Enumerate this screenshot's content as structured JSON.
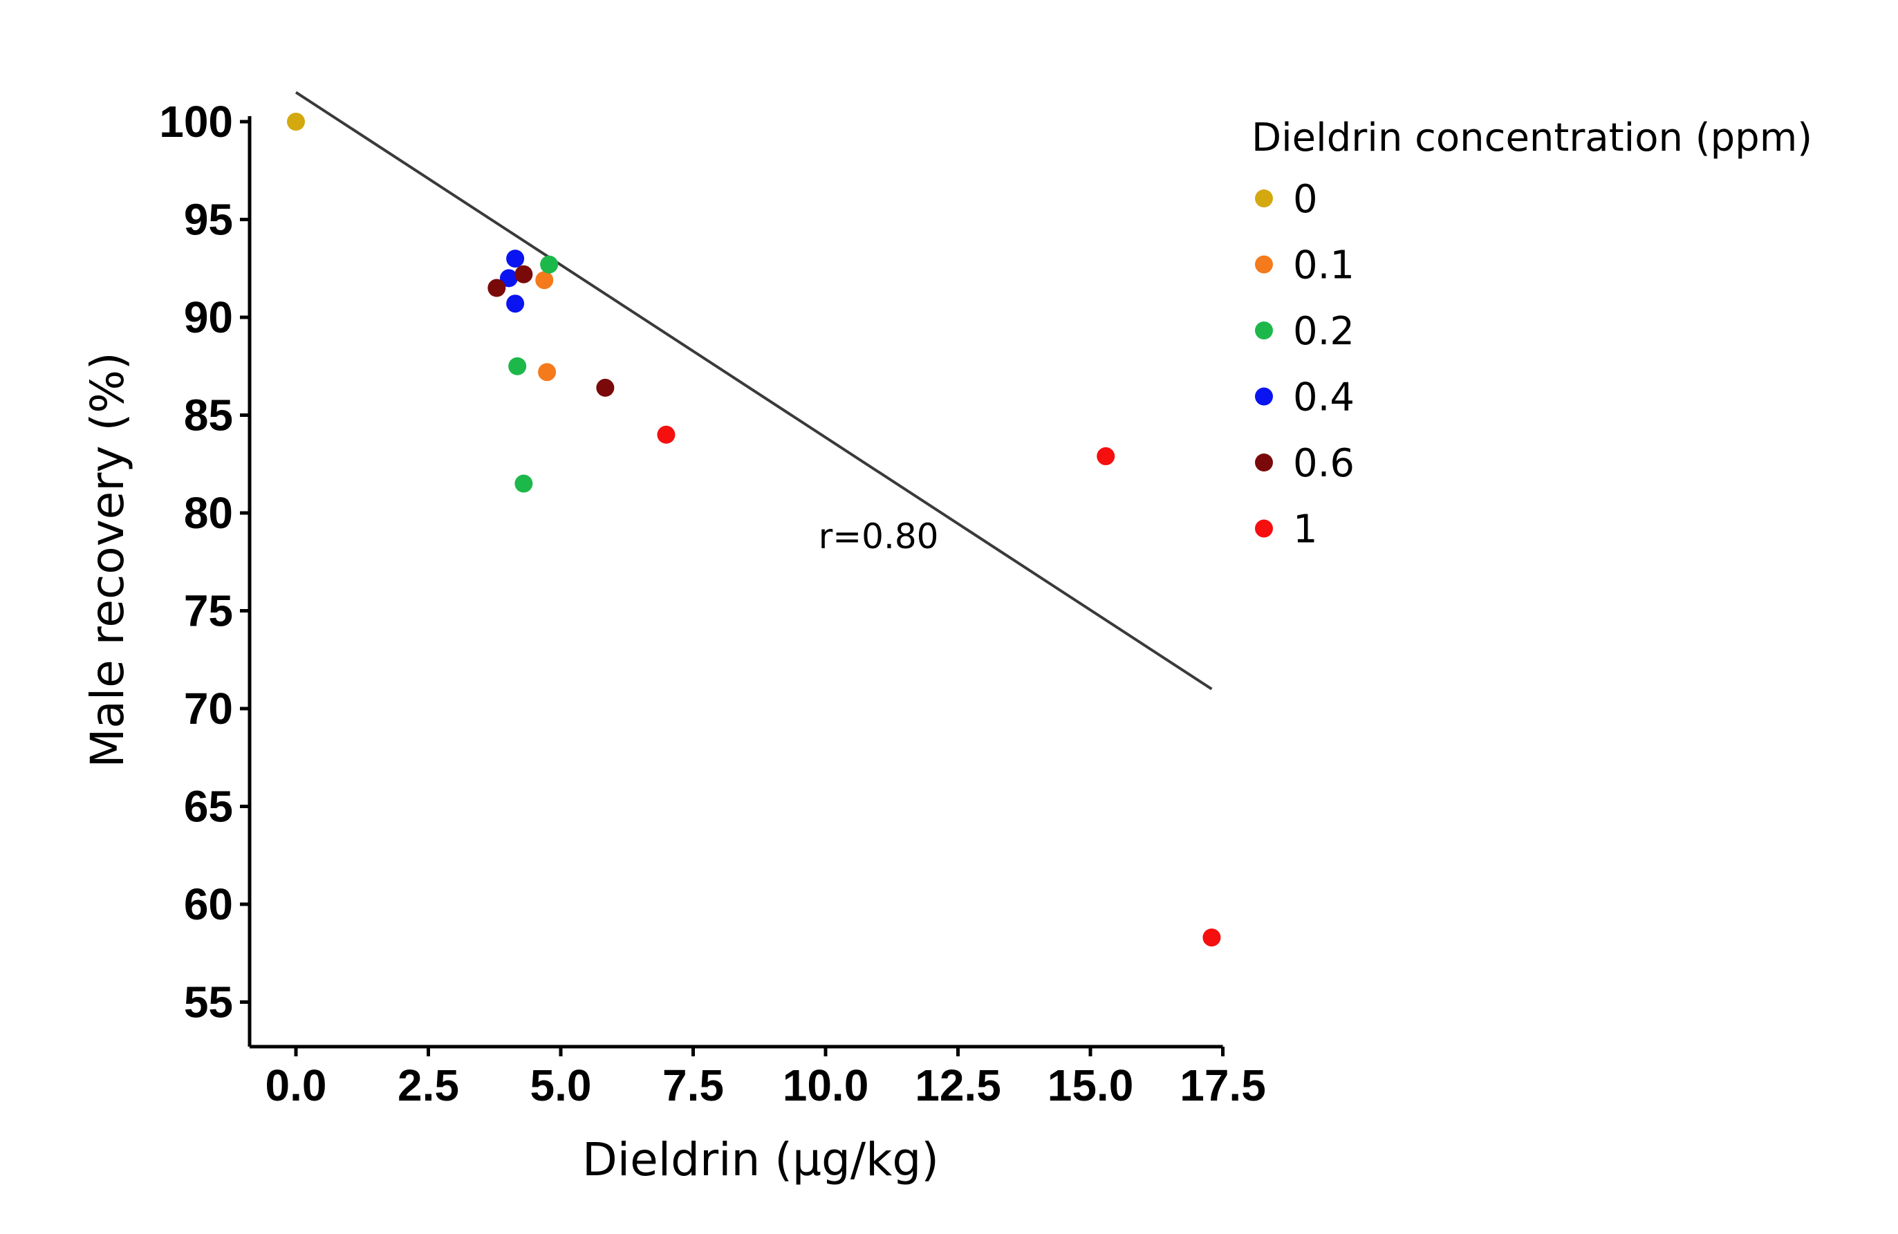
{
  "chart_data": {
    "type": "scatter",
    "title": "",
    "xlabel": "Dieldrin (µg/kg)",
    "ylabel": "Male recovery (%)",
    "xlim": [
      -0.9,
      17.5
    ],
    "ylim": [
      52.8,
      100
    ],
    "xticks": [
      "0.0",
      "2.5",
      "5.0",
      "7.5",
      "10.0",
      "12.5",
      "15.0",
      "17.5"
    ],
    "yticks": [
      "55",
      "60",
      "65",
      "70",
      "75",
      "80",
      "85",
      "90",
      "95",
      "100"
    ],
    "grid": false,
    "legend": {
      "title": "Dieldrin concentration (ppm)",
      "placement": "right"
    },
    "series": [
      {
        "name": "0",
        "color": "#d4a80f",
        "points": [
          [
            0,
            100
          ]
        ]
      },
      {
        "name": "0.1",
        "color": "#f57a1c",
        "points": [
          [
            4.69,
            91.9
          ],
          [
            4.74,
            87.2
          ]
        ]
      },
      {
        "name": "0.2",
        "color": "#1db84a",
        "points": [
          [
            4.78,
            92.7
          ],
          [
            4.18,
            87.5
          ],
          [
            4.3,
            81.5
          ]
        ]
      },
      {
        "name": "0.4",
        "color": "#0a14f0",
        "points": [
          [
            4.14,
            93.0
          ],
          [
            4.02,
            92.0
          ],
          [
            4.14,
            90.7
          ]
        ]
      },
      {
        "name": "0.6",
        "color": "#7a0a0a",
        "points": [
          [
            3.79,
            91.5
          ],
          [
            4.3,
            92.2
          ],
          [
            5.84,
            86.4
          ]
        ]
      },
      {
        "name": "1",
        "color": "#f50f0f",
        "points": [
          [
            6.99,
            84.0
          ],
          [
            15.29,
            82.9
          ],
          [
            17.29,
            58.3
          ]
        ]
      }
    ],
    "fit_line": {
      "x": [
        0,
        17.29
      ],
      "y": [
        101.5,
        71.0
      ],
      "color": "#3a3a3a"
    },
    "annotations": [
      {
        "text": "r=0.80",
        "x": 11.0,
        "y": 78.2
      }
    ]
  }
}
